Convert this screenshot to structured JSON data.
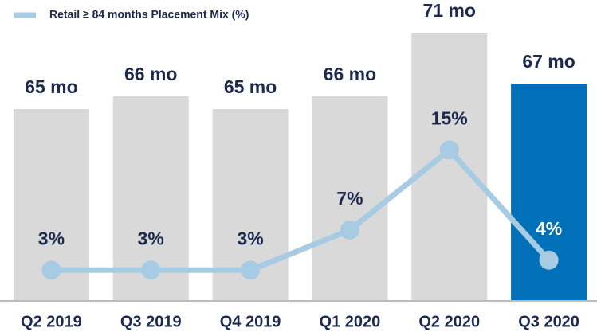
{
  "chart_data": {
    "type": "bar",
    "categories": [
      "Q2 2019",
      "Q3 2019",
      "Q4 2019",
      "Q1 2020",
      "Q2 2020",
      "Q3 2020"
    ],
    "series": [
      {
        "type": "bar",
        "colors": [
          "#d9d9d9",
          "#d9d9d9",
          "#d9d9d9",
          "#d9d9d9",
          "#d9d9d9",
          "#0070b8"
        ],
        "values": [
          65,
          66,
          65,
          66,
          71,
          67
        ],
        "value_labels": [
          "65 mo",
          "66 mo",
          "65 mo",
          "66 mo",
          "71 mo",
          "67 mo"
        ]
      },
      {
        "type": "line",
        "axis": "y2",
        "name": "Retail ≥ 84 months Placement Mix (%)",
        "color": "#a6cbe3",
        "values": [
          3,
          3,
          3,
          7,
          15,
          4
        ],
        "value_labels": [
          "3%",
          "3%",
          "3%",
          "7%",
          "15%",
          "4%"
        ]
      }
    ],
    "ylim": [
      50,
      72
    ],
    "y2lim": [
      0,
      28
    ]
  }
}
